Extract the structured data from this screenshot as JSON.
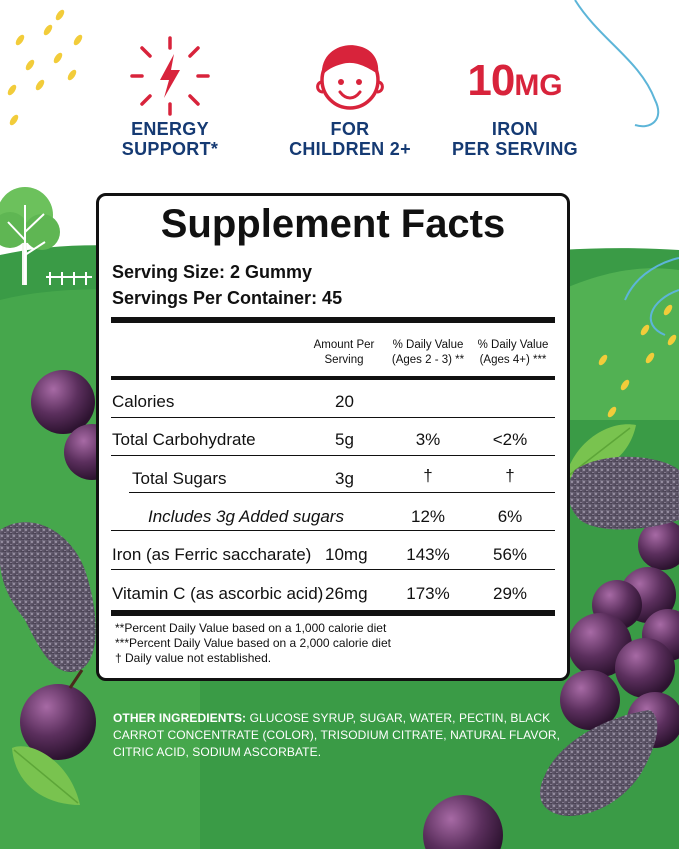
{
  "features": {
    "energy": {
      "icon": "lightning-bolt-icon",
      "line1": "ENERGY",
      "line2": "SUPPORT*"
    },
    "children": {
      "icon": "child-face-icon",
      "line1": "FOR",
      "line2": "CHILDREN 2+"
    },
    "iron": {
      "value": "10",
      "unit": "MG",
      "line1": "IRON",
      "line2": "PER SERVING"
    }
  },
  "facts": {
    "title": "Supplement Facts",
    "serving_size": "Serving Size: 2 Gummy",
    "servings_per_container": "Servings Per Container: 45",
    "headers": {
      "amount": "Amount Per Serving",
      "dv_kids": "% Daily Value (Ages 2 - 3) **",
      "dv_adult": "% Daily Value (Ages 4+) ***"
    },
    "rows": [
      {
        "name": "Calories",
        "amount": "20",
        "dv_kids": "",
        "dv_adult": ""
      },
      {
        "name": "Total Carbohydrate",
        "amount": "5g",
        "dv_kids": "3%",
        "dv_adult": "<2%"
      },
      {
        "name": "Total Sugars",
        "amount": "3g",
        "dv_kids": "†",
        "dv_adult": "†"
      },
      {
        "name": "Includes 3g Added sugars",
        "amount": "",
        "dv_kids": "12%",
        "dv_adult": "6%"
      },
      {
        "name": "Iron (as Ferric saccharate)",
        "amount": "10mg",
        "dv_kids": "143%",
        "dv_adult": "56%"
      },
      {
        "name": "Vitamin C (as ascorbic acid)",
        "amount": "26mg",
        "dv_kids": "173%",
        "dv_adult": "29%"
      }
    ],
    "footnotes": [
      "**Percent Daily Value based on a 1,000 calorie diet",
      "***Percent Daily Value based on a 2,000 calorie diet",
      "† Daily value not established."
    ]
  },
  "ingredients": {
    "label": "OTHER INGREDIENTS:",
    "text": " GLUCOSE SYRUP, SUGAR, WATER, PECTIN, BLACK CARROT CONCENTRATE (COLOR), TRISODIUM CITRATE, NATURAL FLAVOR, CITRIC ACID, SODIUM ASCORBATE."
  },
  "colors": {
    "navy": "#153a73",
    "red": "#d8233b",
    "green": "#3a9b46",
    "yellow": "#f2cc3a",
    "grape": "#5b2f5d"
  }
}
